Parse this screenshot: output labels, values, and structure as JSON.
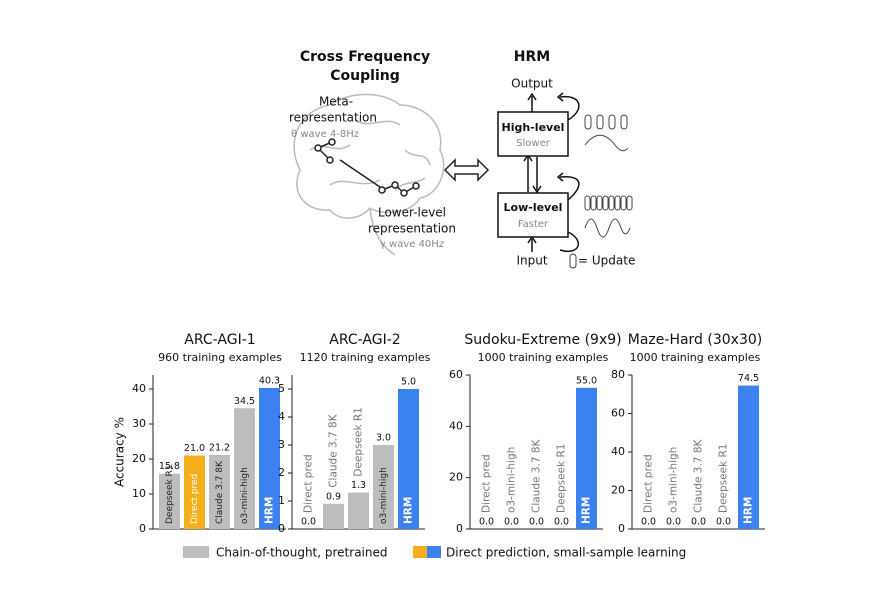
{
  "diagram": {
    "brain_title": [
      "Cross Frequency",
      "Coupling"
    ],
    "meta": [
      "Meta-",
      "representation"
    ],
    "meta_wave": "θ wave 4-8Hz",
    "lower": [
      "Lower-level",
      "representation"
    ],
    "lower_wave": "γ wave 40Hz",
    "hrm_title": "HRM",
    "output": "Output",
    "high": {
      "name": "High-level",
      "speed": "Slower"
    },
    "low": {
      "name": "Low-level",
      "speed": "Faster"
    },
    "input": "Input",
    "update": "= Update"
  },
  "chart_data": [
    {
      "type": "bar",
      "title": "ARC-AGI-1",
      "subtitle": "960 training examples",
      "ylabel": "Accuracy %",
      "categories": [
        "Deepseek R1",
        "Direct pred",
        "Claude 3.7 8K",
        "o3-mini-high",
        "HRM"
      ],
      "values": [
        15.8,
        21.0,
        21.2,
        34.5,
        40.3
      ],
      "value_labels": [
        "15.8",
        "21.0",
        "21.2",
        "34.5",
        "40.3"
      ],
      "colors": [
        "#bdbdbd",
        "#f5ae1d",
        "#bdbdbd",
        "#bdbdbd",
        "#3b82f0"
      ],
      "ylim": [
        0,
        44
      ],
      "yticks": [
        0,
        10,
        20,
        30,
        40
      ]
    },
    {
      "type": "bar",
      "title": "ARC-AGI-2",
      "subtitle": "1120 training examples",
      "categories": [
        "Direct pred",
        "Claude 3.7 8K",
        "Deepseek R1",
        "o3-mini-high",
        "HRM"
      ],
      "values": [
        0.0,
        0.9,
        1.3,
        3.0,
        5.0
      ],
      "value_labels": [
        "0.0",
        "0.9",
        "1.3",
        "3.0",
        "5.0"
      ],
      "colors": [
        "#f5ae1d",
        "#bdbdbd",
        "#bdbdbd",
        "#bdbdbd",
        "#3b82f0"
      ],
      "ylim": [
        0,
        5.5
      ],
      "yticks": [
        0,
        1,
        2,
        3,
        4,
        5
      ]
    },
    {
      "type": "bar",
      "title": "Sudoku-Extreme (9x9)",
      "subtitle": "1000 training examples",
      "categories": [
        "Direct pred",
        "o3-mini-high",
        "Claude 3.7 8K",
        "Deepseek R1",
        "HRM"
      ],
      "values": [
        0.0,
        0.0,
        0.0,
        0.0,
        55.0
      ],
      "value_labels": [
        "0.0",
        "0.0",
        "0.0",
        "0.0",
        "55.0"
      ],
      "colors": [
        "#f5ae1d",
        "#bdbdbd",
        "#bdbdbd",
        "#bdbdbd",
        "#3b82f0"
      ],
      "ylim": [
        0,
        60
      ],
      "yticks": [
        0,
        20,
        40,
        60
      ]
    },
    {
      "type": "bar",
      "title": "Maze-Hard (30x30)",
      "subtitle": "1000 training examples",
      "categories": [
        "Direct pred",
        "o3-mini-high",
        "Claude 3.7 8K",
        "Deepseek R1",
        "HRM"
      ],
      "values": [
        0.0,
        0.0,
        0.0,
        0.0,
        74.5
      ],
      "value_labels": [
        "0.0",
        "0.0",
        "0.0",
        "0.0",
        "74.5"
      ],
      "colors": [
        "#f5ae1d",
        "#bdbdbd",
        "#bdbdbd",
        "#bdbdbd",
        "#3b82f0"
      ],
      "ylim": [
        0,
        80
      ],
      "yticks": [
        0,
        20,
        40,
        60,
        80
      ]
    }
  ],
  "legend": [
    {
      "name": "Chain-of-thought, pretrained",
      "colors": [
        "#bdbdbd"
      ]
    },
    {
      "name": "Direct prediction, small-sample learning",
      "colors": [
        "#f5ae1d",
        "#3b82f0"
      ]
    }
  ]
}
